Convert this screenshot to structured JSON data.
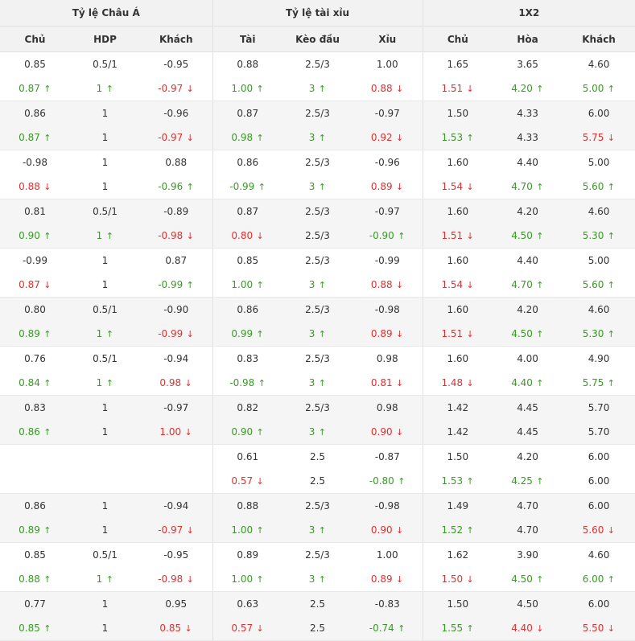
{
  "headers": {
    "groups": [
      "Tỷ lệ Châu Á",
      "Tỷ lệ tài xỉu",
      "1X2"
    ],
    "columns": [
      "Chủ",
      "HDP",
      "Khách",
      "Tài",
      "Kèo đầu",
      "Xỉu",
      "Chủ",
      "Hòa",
      "Khách"
    ]
  },
  "rows": [
    {
      "open": [
        "0.85",
        "0.5/1",
        "-0.95",
        "0.88",
        "2.5/3",
        "1.00",
        "1.65",
        "3.65",
        "4.60"
      ],
      "live": [
        [
          "0.87",
          "up"
        ],
        [
          "1",
          "up"
        ],
        [
          "-0.97",
          "down"
        ],
        [
          "1.00",
          "up"
        ],
        [
          "3",
          "up"
        ],
        [
          "0.88",
          "down"
        ],
        [
          "1.51",
          "down"
        ],
        [
          "4.20",
          "up"
        ],
        [
          "5.00",
          "up"
        ]
      ]
    },
    {
      "open": [
        "0.86",
        "1",
        "-0.96",
        "0.87",
        "2.5/3",
        "-0.97",
        "1.50",
        "4.33",
        "6.00"
      ],
      "live": [
        [
          "0.87",
          "up"
        ],
        [
          "1",
          ""
        ],
        [
          "-0.97",
          "down"
        ],
        [
          "0.98",
          "up"
        ],
        [
          "3",
          "up"
        ],
        [
          "0.92",
          "down"
        ],
        [
          "1.53",
          "up"
        ],
        [
          "4.33",
          ""
        ],
        [
          "5.75",
          "down"
        ]
      ]
    },
    {
      "open": [
        "-0.98",
        "1",
        "0.88",
        "0.86",
        "2.5/3",
        "-0.96",
        "1.60",
        "4.40",
        "5.00"
      ],
      "live": [
        [
          "0.88",
          "down"
        ],
        [
          "1",
          ""
        ],
        [
          "-0.96",
          "up"
        ],
        [
          "-0.99",
          "up"
        ],
        [
          "3",
          "up"
        ],
        [
          "0.89",
          "down"
        ],
        [
          "1.54",
          "down"
        ],
        [
          "4.70",
          "up"
        ],
        [
          "5.60",
          "up"
        ]
      ]
    },
    {
      "open": [
        "0.81",
        "0.5/1",
        "-0.89",
        "0.87",
        "2.5/3",
        "-0.97",
        "1.60",
        "4.20",
        "4.60"
      ],
      "live": [
        [
          "0.90",
          "up"
        ],
        [
          "1",
          "up"
        ],
        [
          "-0.98",
          "down"
        ],
        [
          "0.80",
          "down"
        ],
        [
          "2.5/3",
          ""
        ],
        [
          "-0.90",
          "up"
        ],
        [
          "1.51",
          "down"
        ],
        [
          "4.50",
          "up"
        ],
        [
          "5.30",
          "up"
        ]
      ]
    },
    {
      "open": [
        "-0.99",
        "1",
        "0.87",
        "0.85",
        "2.5/3",
        "-0.99",
        "1.60",
        "4.40",
        "5.00"
      ],
      "live": [
        [
          "0.87",
          "down"
        ],
        [
          "1",
          ""
        ],
        [
          "-0.99",
          "up"
        ],
        [
          "1.00",
          "up"
        ],
        [
          "3",
          "up"
        ],
        [
          "0.88",
          "down"
        ],
        [
          "1.54",
          "down"
        ],
        [
          "4.70",
          "up"
        ],
        [
          "5.60",
          "up"
        ]
      ]
    },
    {
      "open": [
        "0.80",
        "0.5/1",
        "-0.90",
        "0.86",
        "2.5/3",
        "-0.98",
        "1.60",
        "4.20",
        "4.60"
      ],
      "live": [
        [
          "0.89",
          "up"
        ],
        [
          "1",
          "up"
        ],
        [
          "-0.99",
          "down"
        ],
        [
          "0.99",
          "up"
        ],
        [
          "3",
          "up"
        ],
        [
          "0.89",
          "down"
        ],
        [
          "1.51",
          "down"
        ],
        [
          "4.50",
          "up"
        ],
        [
          "5.30",
          "up"
        ]
      ]
    },
    {
      "open": [
        "0.76",
        "0.5/1",
        "-0.94",
        "0.83",
        "2.5/3",
        "0.98",
        "1.60",
        "4.00",
        "4.90"
      ],
      "live": [
        [
          "0.84",
          "up"
        ],
        [
          "1",
          "up"
        ],
        [
          "0.98",
          "down"
        ],
        [
          "-0.98",
          "up"
        ],
        [
          "3",
          "up"
        ],
        [
          "0.81",
          "down"
        ],
        [
          "1.48",
          "down"
        ],
        [
          "4.40",
          "up"
        ],
        [
          "5.75",
          "up"
        ]
      ]
    },
    {
      "open": [
        "0.83",
        "1",
        "-0.97",
        "0.82",
        "2.5/3",
        "0.98",
        "1.42",
        "4.45",
        "5.70"
      ],
      "live": [
        [
          "0.86",
          "up"
        ],
        [
          "1",
          ""
        ],
        [
          "1.00",
          "down"
        ],
        [
          "0.90",
          "up"
        ],
        [
          "3",
          "up"
        ],
        [
          "0.90",
          "down"
        ],
        [
          "1.42",
          ""
        ],
        [
          "4.45",
          ""
        ],
        [
          "5.70",
          ""
        ]
      ]
    },
    {
      "open": [
        "",
        "",
        "",
        "0.61",
        "2.5",
        "-0.87",
        "1.50",
        "4.20",
        "6.00"
      ],
      "live": [
        [
          "",
          ""
        ],
        [
          "",
          ""
        ],
        [
          "",
          ""
        ],
        [
          "0.57",
          "down"
        ],
        [
          "2.5",
          ""
        ],
        [
          "-0.80",
          "up"
        ],
        [
          "1.53",
          "up"
        ],
        [
          "4.25",
          "up"
        ],
        [
          "6.00",
          ""
        ]
      ]
    },
    {
      "open": [
        "0.86",
        "1",
        "-0.94",
        "0.88",
        "2.5/3",
        "-0.98",
        "1.49",
        "4.70",
        "6.00"
      ],
      "live": [
        [
          "0.89",
          "up"
        ],
        [
          "1",
          ""
        ],
        [
          "-0.97",
          "down"
        ],
        [
          "1.00",
          "up"
        ],
        [
          "3",
          "up"
        ],
        [
          "0.90",
          "down"
        ],
        [
          "1.52",
          "up"
        ],
        [
          "4.70",
          ""
        ],
        [
          "5.60",
          "down"
        ]
      ]
    },
    {
      "open": [
        "0.85",
        "0.5/1",
        "-0.95",
        "0.89",
        "2.5/3",
        "1.00",
        "1.62",
        "3.90",
        "4.60"
      ],
      "live": [
        [
          "0.88",
          "up"
        ],
        [
          "1",
          "up"
        ],
        [
          "-0.98",
          "down"
        ],
        [
          "1.00",
          "up"
        ],
        [
          "3",
          "up"
        ],
        [
          "0.89",
          "down"
        ],
        [
          "1.50",
          "down"
        ],
        [
          "4.50",
          "up"
        ],
        [
          "6.00",
          "up"
        ]
      ]
    },
    {
      "open": [
        "0.77",
        "1",
        "0.95",
        "0.63",
        "2.5",
        "-0.83",
        "1.50",
        "4.50",
        "6.00"
      ],
      "live": [
        [
          "0.85",
          "up"
        ],
        [
          "1",
          ""
        ],
        [
          "0.85",
          "down"
        ],
        [
          "0.57",
          "down"
        ],
        [
          "2.5",
          ""
        ],
        [
          "-0.74",
          "up"
        ],
        [
          "1.55",
          "up"
        ],
        [
          "4.40",
          "down"
        ],
        [
          "5.50",
          "down"
        ]
      ]
    }
  ],
  "colors": {
    "up": "#3a9a26",
    "down": "#e03030",
    "header_bg": "#f2f2f2",
    "stripe_bg": "#f5f5f5"
  },
  "icons": {
    "up": "arrow-up-icon",
    "down": "arrow-down-icon"
  }
}
